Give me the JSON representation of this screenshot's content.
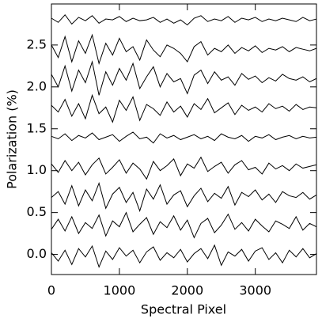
{
  "chart_data": {
    "type": "line",
    "x_label": "Spectral Pixel",
    "y_label": "Polarization (%)",
    "x": [
      0,
      100,
      200,
      300,
      400,
      500,
      600,
      700,
      800,
      900,
      1000,
      1100,
      1200,
      1300,
      1400,
      1500,
      1600,
      1700,
      1800,
      1900,
      2000,
      2100,
      2200,
      2300,
      2400,
      2500,
      2600,
      2700,
      2800,
      2900,
      3000,
      3100,
      3200,
      3300,
      3400,
      3500,
      3600,
      3700,
      3800,
      3900
    ],
    "xlim": [
      0,
      3900
    ],
    "xticks": [
      0,
      1000,
      2000,
      3000
    ],
    "ylim": [
      -0.24,
      2.99
    ],
    "yticks": [
      {
        "value": 0,
        "label": "0.0"
      },
      {
        "value": 0.5,
        "label": "0.5"
      },
      {
        "value": 1,
        "label": "1.0"
      },
      {
        "value": 1.5,
        "label": "1.5"
      },
      {
        "value": 2,
        "label": "2.0"
      },
      {
        "value": 2.5,
        "label": "2.5"
      }
    ],
    "series": [
      {
        "color": "#000000",
        "values": [
          0.02,
          -0.08,
          0.05,
          -0.12,
          0.07,
          -0.03,
          0.1,
          -0.15,
          0.04,
          -0.06,
          0.08,
          -0.02,
          0.05,
          -0.1,
          0.03,
          0.09,
          -0.07,
          0.02,
          -0.04,
          0.06,
          -0.09,
          0.01,
          0.07,
          -0.05,
          0.11,
          -0.13,
          0.03,
          -0.02,
          0.06,
          -0.08,
          0.04,
          0.08,
          -0.06,
          0.02,
          -0.1,
          0.05,
          -0.03,
          0.07,
          -0.04,
          0.01
        ]
      },
      {
        "color": "#000000",
        "values": [
          0.3,
          0.42,
          0.28,
          0.45,
          0.25,
          0.38,
          0.31,
          0.47,
          0.22,
          0.4,
          0.33,
          0.5,
          0.27,
          0.36,
          0.44,
          0.24,
          0.39,
          0.32,
          0.46,
          0.29,
          0.41,
          0.2,
          0.37,
          0.43,
          0.26,
          0.35,
          0.48,
          0.3,
          0.38,
          0.28,
          0.42,
          0.34,
          0.27,
          0.4,
          0.36,
          0.31,
          0.45,
          0.29,
          0.37,
          0.33
        ]
      },
      {
        "color": "#000000",
        "values": [
          0.68,
          0.75,
          0.6,
          0.82,
          0.58,
          0.77,
          0.64,
          0.85,
          0.55,
          0.72,
          0.8,
          0.62,
          0.74,
          0.52,
          0.78,
          0.66,
          0.83,
          0.6,
          0.71,
          0.76,
          0.57,
          0.7,
          0.79,
          0.63,
          0.73,
          0.67,
          0.81,
          0.59,
          0.74,
          0.69,
          0.77,
          0.65,
          0.72,
          0.62,
          0.75,
          0.7,
          0.68,
          0.74,
          0.66,
          0.71
        ]
      },
      {
        "color": "#000000",
        "values": [
          1.08,
          0.98,
          1.12,
          1.0,
          1.1,
          0.95,
          1.07,
          1.15,
          0.96,
          1.04,
          1.13,
          0.97,
          1.09,
          1.02,
          0.9,
          1.11,
          1.0,
          1.06,
          1.14,
          0.94,
          1.08,
          1.03,
          1.16,
          0.99,
          1.05,
          1.1,
          0.97,
          1.07,
          1.12,
          1.01,
          1.04,
          0.96,
          1.09,
          1.02,
          1.06,
          1.0,
          1.08,
          1.03,
          1.05,
          1.07
        ]
      },
      {
        "color": "#000000",
        "values": [
          1.41,
          1.38,
          1.44,
          1.36,
          1.42,
          1.39,
          1.45,
          1.37,
          1.4,
          1.43,
          1.35,
          1.41,
          1.46,
          1.38,
          1.4,
          1.33,
          1.44,
          1.39,
          1.42,
          1.37,
          1.4,
          1.43,
          1.38,
          1.41,
          1.36,
          1.44,
          1.4,
          1.38,
          1.42,
          1.35,
          1.41,
          1.39,
          1.43,
          1.37,
          1.4,
          1.42,
          1.38,
          1.41,
          1.39,
          1.4
        ]
      },
      {
        "color": "#000000",
        "values": [
          1.78,
          1.7,
          1.85,
          1.65,
          1.8,
          1.62,
          1.9,
          1.68,
          1.76,
          1.58,
          1.84,
          1.72,
          1.88,
          1.6,
          1.79,
          1.74,
          1.66,
          1.82,
          1.7,
          1.77,
          1.64,
          1.8,
          1.73,
          1.86,
          1.69,
          1.75,
          1.81,
          1.67,
          1.78,
          1.72,
          1.76,
          1.7,
          1.8,
          1.74,
          1.77,
          1.71,
          1.79,
          1.73,
          1.76,
          1.75
        ]
      },
      {
        "color": "#000000",
        "values": [
          2.15,
          2.0,
          2.25,
          1.95,
          2.2,
          2.05,
          2.3,
          1.9,
          2.18,
          2.02,
          2.22,
          2.08,
          2.28,
          1.98,
          2.12,
          2.24,
          2.0,
          2.16,
          2.06,
          2.1,
          1.92,
          2.14,
          2.2,
          2.04,
          2.18,
          2.08,
          2.12,
          2.02,
          2.16,
          2.09,
          2.13,
          2.05,
          2.11,
          2.07,
          2.15,
          2.1,
          2.08,
          2.12,
          2.06,
          2.1
        ]
      },
      {
        "color": "#000000",
        "values": [
          2.5,
          2.35,
          2.6,
          2.3,
          2.55,
          2.4,
          2.62,
          2.28,
          2.52,
          2.38,
          2.58,
          2.42,
          2.48,
          2.32,
          2.56,
          2.44,
          2.36,
          2.5,
          2.46,
          2.4,
          2.3,
          2.48,
          2.54,
          2.38,
          2.46,
          2.42,
          2.5,
          2.4,
          2.47,
          2.43,
          2.49,
          2.41,
          2.46,
          2.44,
          2.48,
          2.42,
          2.47,
          2.45,
          2.43,
          2.46
        ]
      },
      {
        "color": "#000000",
        "values": [
          2.82,
          2.77,
          2.86,
          2.75,
          2.83,
          2.79,
          2.85,
          2.76,
          2.81,
          2.8,
          2.84,
          2.78,
          2.82,
          2.79,
          2.8,
          2.83,
          2.77,
          2.81,
          2.76,
          2.8,
          2.74,
          2.82,
          2.85,
          2.78,
          2.81,
          2.79,
          2.84,
          2.77,
          2.82,
          2.8,
          2.83,
          2.78,
          2.81,
          2.79,
          2.82,
          2.8,
          2.78,
          2.83,
          2.79,
          2.81
        ]
      }
    ]
  }
}
